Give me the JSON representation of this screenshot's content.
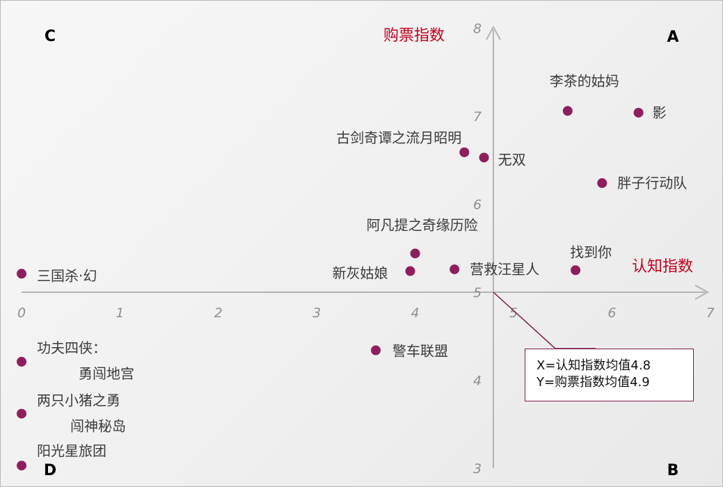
{
  "chart_data": {
    "type": "scatter",
    "xlabel": "认知指数",
    "ylabel": "购票指数",
    "xlim": [
      0,
      7
    ],
    "ylim": [
      3,
      8
    ],
    "x_ticks": [
      "0",
      "1",
      "2",
      "3",
      "4",
      "5",
      "6",
      "7"
    ],
    "y_ticks": [
      "3",
      "4",
      "5",
      "6",
      "7",
      "8"
    ],
    "quadrants": [
      "A",
      "B",
      "C",
      "D"
    ],
    "points": [
      {
        "label": "李茶的姑妈",
        "x": 5.55,
        "y": 7.06
      },
      {
        "label": "影",
        "x": 6.27,
        "y": 7.04
      },
      {
        "label": "古剑奇谭之流月昭明",
        "x": 4.5,
        "y": 6.59
      },
      {
        "label": "无双",
        "x": 4.7,
        "y": 6.53
      },
      {
        "label": "胖子行动队",
        "x": 5.9,
        "y": 6.24
      },
      {
        "label": "阿凡提之奇缘历险",
        "x": 4.0,
        "y": 5.44
      },
      {
        "label": "新灰姑娘",
        "x": 3.95,
        "y": 5.24
      },
      {
        "label": "营救汪星人",
        "x": 4.4,
        "y": 5.26
      },
      {
        "label": "找到你",
        "x": 5.63,
        "y": 5.25
      },
      {
        "label": "三国杀·幻",
        "x": 0.0,
        "y": 5.21
      },
      {
        "label": "警车联盟",
        "x": 3.6,
        "y": 4.34
      },
      {
        "label": "功夫四侠：勇闯地宫",
        "x": 0.0,
        "y": 4.21
      },
      {
        "label": "两只小猪之勇闯神秘岛",
        "x": 0.0,
        "y": 3.62
      },
      {
        "label": "阳光星旅团",
        "x": 0.0,
        "y": 3.03
      }
    ],
    "mean_x": 4.8,
    "mean_y": 4.9
  },
  "callout": {
    "line1": "X=认知指数均值4.8",
    "line2": "Y=购票指数均值4.9"
  },
  "colors": {
    "point": "#8e1f5f",
    "axis": "#b3b3b3",
    "axis_title": "#c0001f",
    "callout_border": "#7b1a4a"
  }
}
